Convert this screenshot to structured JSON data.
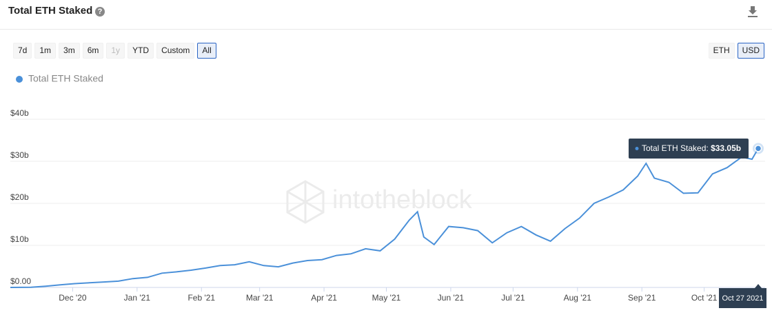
{
  "header": {
    "title": "Total ETH Staked"
  },
  "controls": {
    "ranges": [
      "7d",
      "1m",
      "3m",
      "6m",
      "1y",
      "YTD",
      "Custom",
      "All"
    ],
    "disabled_range": "1y",
    "active_range": "All",
    "units": [
      "ETH",
      "USD"
    ],
    "active_unit": "USD"
  },
  "watermark": "intotheblock",
  "chart_data": {
    "type": "line",
    "x": [
      "2020-11-01",
      "2020-11-11",
      "2020-11-18",
      "2020-11-25",
      "2020-12-02",
      "2020-12-09",
      "2020-12-16",
      "2020-12-23",
      "2020-12-30",
      "2021-01-06",
      "2021-01-13",
      "2021-01-20",
      "2021-01-27",
      "2021-02-03",
      "2021-02-10",
      "2021-02-17",
      "2021-02-24",
      "2021-03-03",
      "2021-03-10",
      "2021-03-17",
      "2021-03-24",
      "2021-03-31",
      "2021-04-07",
      "2021-04-14",
      "2021-04-21",
      "2021-04-28",
      "2021-05-05",
      "2021-05-12",
      "2021-05-16",
      "2021-05-19",
      "2021-05-24",
      "2021-05-31",
      "2021-06-07",
      "2021-06-14",
      "2021-06-21",
      "2021-06-28",
      "2021-07-05",
      "2021-07-12",
      "2021-07-19",
      "2021-07-26",
      "2021-08-02",
      "2021-08-09",
      "2021-08-16",
      "2021-08-23",
      "2021-08-30",
      "2021-09-03",
      "2021-09-07",
      "2021-09-14",
      "2021-09-21",
      "2021-09-28",
      "2021-10-05",
      "2021-10-12",
      "2021-10-19",
      "2021-10-24",
      "2021-10-27"
    ],
    "series": [
      {
        "name": "Total ETH Staked",
        "color": "#4a90d9",
        "values": [
          0,
          0.05,
          0.3,
          0.6,
          0.9,
          1.1,
          1.3,
          1.5,
          2.1,
          2.4,
          3.4,
          3.7,
          4.1,
          4.6,
          5.2,
          5.4,
          6.1,
          5.2,
          4.9,
          5.8,
          6.4,
          6.6,
          7.6,
          8.0,
          9.2,
          8.7,
          11.5,
          16.0,
          18.0,
          12.0,
          10.2,
          14.5,
          14.2,
          13.5,
          10.6,
          13.0,
          14.5,
          12.5,
          11.0,
          14.0,
          16.5,
          20.0,
          21.5,
          23.2,
          26.5,
          29.5,
          26.0,
          25.0,
          22.4,
          22.5,
          27.0,
          28.5,
          31.0,
          30.5,
          33.05
        ]
      }
    ],
    "xlim": [
      "2020-11-01",
      "2021-10-27"
    ],
    "xticks": [
      {
        "value": "2020-12-01",
        "label": "Dec '20"
      },
      {
        "value": "2021-01-01",
        "label": "Jan '21"
      },
      {
        "value": "2021-02-01",
        "label": "Feb '21"
      },
      {
        "value": "2021-03-01",
        "label": "Mar '21"
      },
      {
        "value": "2021-04-01",
        "label": "Apr '21"
      },
      {
        "value": "2021-05-01",
        "label": "May '21"
      },
      {
        "value": "2021-06-01",
        "label": "Jun '21"
      },
      {
        "value": "2021-07-01",
        "label": "Jul '21"
      },
      {
        "value": "2021-08-01",
        "label": "Aug '21"
      },
      {
        "value": "2021-09-01",
        "label": "Sep '21"
      },
      {
        "value": "2021-10-01",
        "label": "Oct '21"
      }
    ],
    "ylim": [
      0,
      40
    ],
    "yticks": [
      {
        "value": 0,
        "label": "$0.00"
      },
      {
        "value": 10,
        "label": "$10b"
      },
      {
        "value": 20,
        "label": "$20b"
      },
      {
        "value": 30,
        "label": "$30b"
      },
      {
        "value": 40,
        "label": "$40b"
      }
    ],
    "grid": true,
    "tooltip": {
      "label": "Total ETH Staked:",
      "value": 33.05,
      "value_label": "$33.05b",
      "date": "Oct 27 2021"
    }
  }
}
